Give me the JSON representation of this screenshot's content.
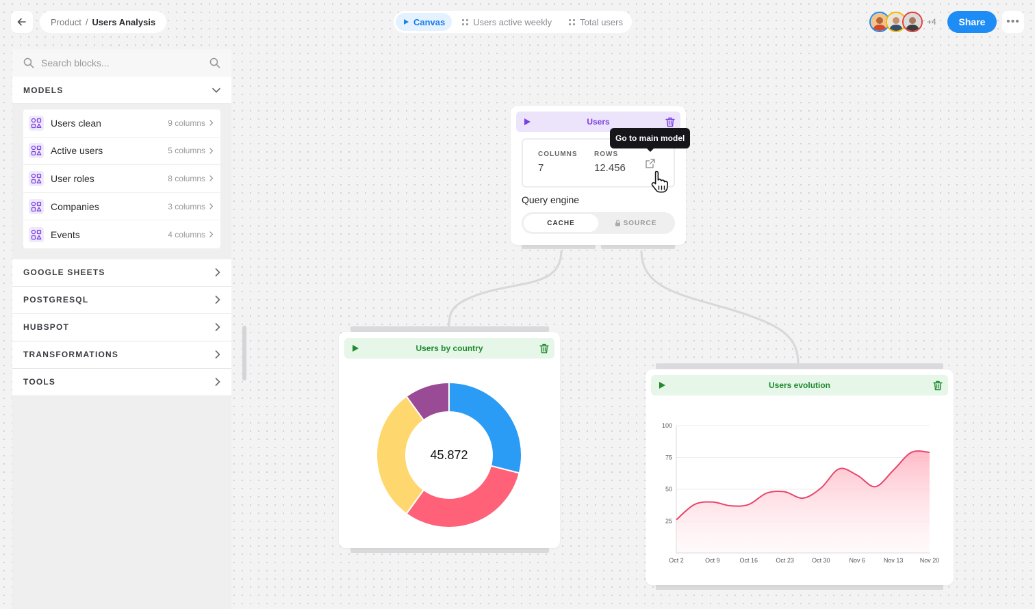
{
  "breadcrumb": {
    "parent": "Product",
    "separator": "/",
    "current": "Users Analysis"
  },
  "tabs": [
    {
      "label": "Canvas",
      "icon": "play-icon",
      "active": true
    },
    {
      "label": "Users active weekly",
      "icon": "grid-dots-icon",
      "active": false
    },
    {
      "label": "Total users",
      "icon": "grid-dots-icon",
      "active": false
    }
  ],
  "collaborators": {
    "extra_count": "+4",
    "ring_colors": [
      "#1d8cf5",
      "#f5b800",
      "#e23d3d"
    ]
  },
  "share_label": "Share",
  "more_label": "•••",
  "sidebar": {
    "search_placeholder": "Search blocks...",
    "models_heading": "MODELS",
    "models": [
      {
        "name": "Users clean",
        "columns": "9 columns"
      },
      {
        "name": "Active users",
        "columns": "5 columns"
      },
      {
        "name": "User roles",
        "columns": "8 columns"
      },
      {
        "name": "Companies",
        "columns": "3 columns"
      },
      {
        "name": "Events",
        "columns": "4 columns"
      }
    ],
    "sections": [
      "GOOGLE SHEETS",
      "POSTGRESQL",
      "HUBSPOT",
      "TRANSFORMATIONS",
      "TOOLS"
    ]
  },
  "users_card": {
    "title": "Users",
    "columns_label": "COLUMNS",
    "columns_value": "7",
    "rows_label": "ROWS",
    "rows_value": "12.456",
    "tooltip": "Go to main model",
    "engine_label": "Query engine",
    "cache_label": "CACHE",
    "source_label": "SOURCE",
    "accent": "#7b3fe4",
    "header_bg": "#ece4fb"
  },
  "country_card": {
    "title": "Users by country",
    "center_value": "45.872",
    "accent": "#1f8a2e",
    "header_bg": "#e6f6e9"
  },
  "evolution_card": {
    "title": "Users evolution",
    "accent": "#1f8a2e",
    "header_bg": "#e6f6e9"
  },
  "chart_data": [
    {
      "type": "pie",
      "title": "Users by country",
      "center_label": "45.872",
      "slices": [
        {
          "value": 29,
          "color": "#2b9cf5"
        },
        {
          "value": 31,
          "color": "#ff6178"
        },
        {
          "value": 30,
          "color": "#fed86e"
        },
        {
          "value": 10,
          "color": "#9a4b96"
        }
      ]
    },
    {
      "type": "area",
      "title": "Users evolution",
      "categories": [
        "Oct 2",
        "Oct 9",
        "Oct 16",
        "Oct 23",
        "Oct 30",
        "Nov 6",
        "Nov 13",
        "Nov 20"
      ],
      "x_values": [
        0,
        3.5,
        7,
        10.5,
        14,
        17.5,
        21,
        24.5,
        28,
        31.5,
        35,
        38.5,
        42,
        45.5,
        49
      ],
      "y_values": [
        26,
        38,
        40,
        37,
        38,
        47,
        48,
        43,
        51,
        66,
        61,
        52,
        65,
        79,
        79
      ],
      "y_ticks": [
        "100",
        "75",
        "50",
        "25"
      ],
      "ylim": [
        0,
        100
      ],
      "line_color": "#e8456a",
      "fill_color": "#ffc1cc",
      "grid": true
    }
  ]
}
